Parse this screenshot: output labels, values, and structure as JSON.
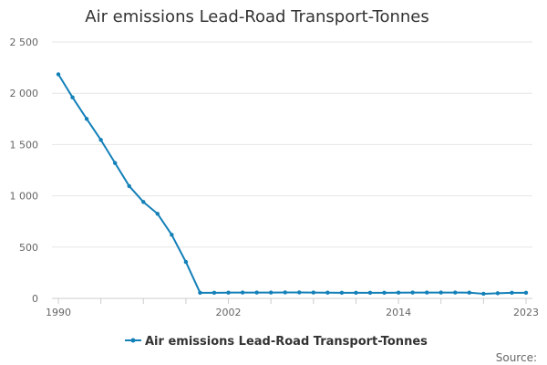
{
  "chart_data": {
    "type": "line",
    "title": "Air emissions Lead-Road Transport-Tonnes",
    "xlabel": "",
    "ylabel": "",
    "x": [
      1990,
      1991,
      1992,
      1993,
      1994,
      1995,
      1996,
      1997,
      1998,
      1999,
      2000,
      2001,
      2002,
      2003,
      2004,
      2005,
      2006,
      2007,
      2008,
      2009,
      2010,
      2011,
      2012,
      2013,
      2014,
      2015,
      2016,
      2017,
      2018,
      2019,
      2020,
      2021,
      2022,
      2023
    ],
    "series": [
      {
        "name": "Air emissions Lead-Road Transport-Tonnes",
        "color": "#1380b8",
        "values": [
          2185,
          1960,
          1750,
          1545,
          1320,
          1095,
          940,
          825,
          620,
          355,
          55,
          55,
          56,
          57,
          57,
          57,
          58,
          58,
          57,
          56,
          55,
          55,
          55,
          55,
          56,
          57,
          57,
          57,
          57,
          56,
          45,
          50,
          55,
          55
        ]
      }
    ],
    "xlim": [
      1990,
      2023
    ],
    "ylim": [
      0,
      2500
    ],
    "x_tick_labels": [
      "1990",
      "2002",
      "2014",
      "2023"
    ],
    "y_tick_labels": [
      "0",
      "500",
      "1 000",
      "1 500",
      "2 000",
      "2 500"
    ],
    "grid": true,
    "legend": "bottom",
    "source_label": "Source:"
  }
}
